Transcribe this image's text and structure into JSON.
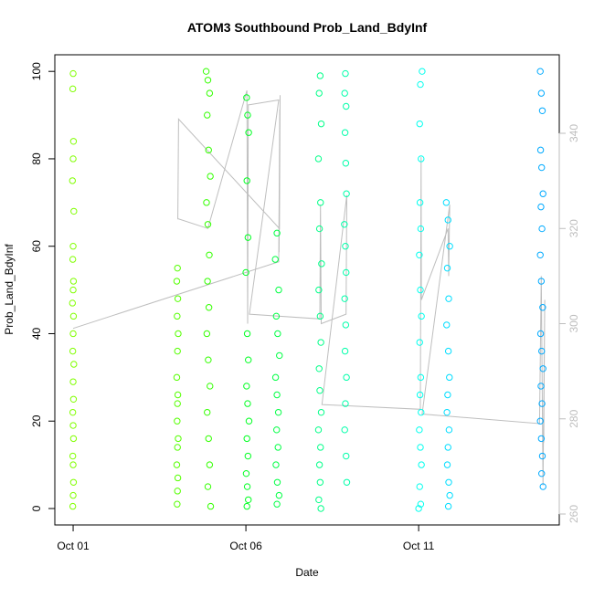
{
  "chart_data": {
    "type": "scatter",
    "title": "ATOM3 Southbound Prob_Land_BdyInf",
    "xlabel": "Date",
    "ylabel": "Prob_Land_BdyInf",
    "xlim": [
      0.47,
      15.07
    ],
    "xticks": [
      {
        "value": 1,
        "label": "Oct 01"
      },
      {
        "value": 6,
        "label": "Oct 06"
      },
      {
        "value": 11,
        "label": "Oct 11"
      }
    ],
    "ylim": [
      -3.76,
      103.8
    ],
    "yticks": [
      0,
      20,
      40,
      60,
      80,
      100
    ],
    "y2lim": [
      257.7,
      356.5
    ],
    "y2ticks": [
      260,
      280,
      300,
      320,
      340
    ],
    "series": [
      {
        "color": "#bebebe",
        "axis": "y2",
        "mode": "line",
        "x": [
          1.0,
          6.95,
          6.98,
          6.96,
          6.99,
          6.97,
          4.05,
          4.03,
          4.05,
          4.9,
          6.03,
          6.05,
          6.07,
          6.1,
          6.95,
          6.1,
          8.14,
          8.16,
          8.18,
          8.9,
          8.92,
          8.2,
          11.05,
          11.07,
          11.08,
          11.85,
          11.87,
          11.9,
          11.1,
          14.5,
          14.55,
          14.6,
          14.65,
          14.62
        ],
        "values": [
          299,
          313,
          345,
          315,
          348,
          320,
          343,
          322,
          322,
          320,
          349,
          300,
          346,
          346,
          347,
          302,
          301,
          325,
          300,
          302,
          327,
          283,
          282,
          335,
          305,
          320,
          310,
          325,
          281,
          279,
          310,
          266,
          305,
          275
        ]
      },
      {
        "color": "#80ff00",
        "x": [
          1.0,
          0.99,
          1.01,
          1.0,
          0.98,
          1.02,
          1.0,
          0.99,
          1.01,
          1.0,
          0.98,
          1.01,
          1.0,
          0.99,
          1.02,
          1.0,
          1.01,
          0.99,
          1.0,
          1.01,
          0.99,
          1.0,
          1.01,
          1.0,
          0.99
        ],
        "values": [
          99.5,
          96,
          84,
          80,
          75,
          68,
          60,
          57,
          52,
          50,
          47,
          44,
          40,
          36,
          33,
          29,
          25,
          22,
          19,
          16,
          12,
          10,
          6,
          3,
          0.5
        ]
      },
      {
        "color": "#55ff00",
        "x": [
          4.02,
          4.0,
          4.03,
          4.01,
          4.04,
          4.02,
          4.0,
          4.03,
          4.02,
          4.01,
          4.04,
          4.02,
          4.0,
          4.03,
          4.02,
          4.01
        ],
        "values": [
          55,
          52,
          48,
          44,
          40,
          36,
          30,
          26,
          24,
          20,
          16,
          14,
          10,
          7,
          4,
          1
        ]
      },
      {
        "color": "#33ff00",
        "x": [
          4.85,
          4.9,
          4.95,
          4.88,
          4.92,
          4.97,
          4.86,
          4.9,
          4.94,
          4.89,
          4.93,
          4.87,
          4.91,
          4.96,
          4.88,
          4.92,
          4.95,
          4.9,
          4.98
        ],
        "values": [
          100,
          98,
          95,
          90,
          82,
          76,
          70,
          65,
          58,
          52,
          46,
          40,
          34,
          28,
          22,
          16,
          10,
          5,
          0.5
        ]
      },
      {
        "color": "#00ff22",
        "x": [
          6.02,
          6.05,
          6.08,
          6.03,
          6.06,
          6.0,
          6.04,
          6.07,
          6.02,
          6.05,
          6.09,
          6.03,
          6.06,
          6.01,
          6.04,
          6.07,
          6.03
        ],
        "values": [
          94,
          90,
          86,
          75,
          62,
          54,
          40,
          34,
          28,
          24,
          20,
          16,
          12,
          8,
          5,
          2,
          0.5
        ]
      },
      {
        "color": "#00ff44",
        "x": [
          6.9,
          6.85,
          6.95,
          6.88,
          6.92,
          6.97,
          6.86,
          6.9,
          6.94,
          6.89,
          6.93,
          6.87,
          6.91,
          6.96,
          6.9
        ],
        "values": [
          63,
          57,
          50,
          44,
          40,
          35,
          30,
          26,
          22,
          18,
          14,
          10,
          6,
          3,
          1
        ]
      },
      {
        "color": "#00ff88",
        "x": [
          8.15,
          8.12,
          8.18,
          8.1,
          8.16,
          8.13,
          8.19,
          8.11,
          8.15,
          8.17,
          8.12,
          8.14,
          8.18,
          8.1,
          8.16,
          8.13,
          8.15,
          8.11,
          8.17
        ],
        "values": [
          99,
          95,
          88,
          80,
          70,
          64,
          56,
          50,
          44,
          38,
          32,
          27,
          22,
          18,
          14,
          10,
          6,
          2,
          0
        ]
      },
      {
        "color": "#00ffaa",
        "x": [
          8.88,
          8.86,
          8.9,
          8.87,
          8.89,
          8.91,
          8.85,
          8.88,
          8.9,
          8.86,
          8.89,
          8.87,
          8.91,
          8.88,
          8.86,
          8.9,
          8.92
        ],
        "values": [
          99.5,
          95,
          92,
          86,
          79,
          72,
          65,
          60,
          54,
          48,
          42,
          36,
          30,
          24,
          18,
          12,
          6
        ]
      },
      {
        "color": "#00ffee",
        "x": [
          11.1,
          11.05,
          11.03,
          11.07,
          11.04,
          11.06,
          11.02,
          11.05,
          11.08,
          11.03,
          11.06,
          11.04,
          11.07,
          11.02,
          11.05,
          11.08,
          11.03,
          11.06,
          11.0
        ],
        "values": [
          100,
          97,
          88,
          80,
          70,
          64,
          58,
          50,
          44,
          38,
          30,
          26,
          22,
          18,
          14,
          10,
          5,
          1,
          0
        ]
      },
      {
        "color": "#00ddff",
        "x": [
          11.8,
          11.85,
          11.9,
          11.83,
          11.87,
          11.81,
          11.86,
          11.89,
          11.84,
          11.82,
          11.88,
          11.85,
          11.83,
          11.87,
          11.9,
          11.86
        ],
        "values": [
          70,
          66,
          60,
          55,
          48,
          42,
          36,
          30,
          26,
          22,
          18,
          14,
          10,
          6,
          3,
          0.5
        ]
      },
      {
        "color": "#00aaff",
        "x": [
          14.52,
          14.55,
          14.58,
          14.53,
          14.56,
          14.6,
          14.54,
          14.57,
          14.52,
          14.55,
          14.59,
          14.53,
          14.56,
          14.6,
          14.54,
          14.57,
          14.52,
          14.55,
          14.58,
          14.56,
          14.6
        ],
        "values": [
          100,
          95,
          91,
          82,
          78,
          72,
          69,
          64,
          58,
          52,
          46,
          40,
          36,
          32,
          28,
          24,
          20,
          16,
          12,
          8,
          5
        ]
      }
    ]
  }
}
